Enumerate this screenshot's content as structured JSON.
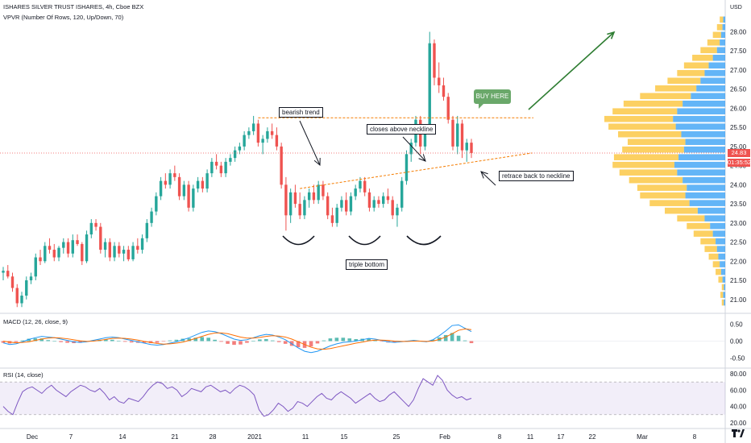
{
  "header": {
    "title": "ISHARES SILVER TRUST ISHARES, 4h, Cboe BZX",
    "indicator": "VPVR (Number Of Rows, 120, Up/Down, 70)",
    "currency": "USD"
  },
  "macd_label": "MACD (12, 26, close, 9)",
  "rsi_label": "RSI (14, close)",
  "price_tags": {
    "last": "24.83",
    "countdown": "01:35:52"
  },
  "annotations": {
    "bearish": "bearish trend",
    "closes": "closes above neckline",
    "retrace": "retrace back to neckline",
    "triple": "triple bottom",
    "buy": "BUY HERE"
  },
  "colors": {
    "up": "#26a69a",
    "down": "#ef5350",
    "vol_up": "#2196f3",
    "vol_down": "#fbc02d",
    "macd": "#2196f3",
    "signal": "#ff6d00",
    "rsi": "#7e57c2",
    "anno": "#f57c00"
  },
  "chart_data": [
    {
      "type": "candlestick",
      "pane": "price",
      "yticks": [
        "28.00",
        "27.50",
        "27.00",
        "26.50",
        "26.00",
        "25.50",
        "25.00",
        "24.50",
        "24.00",
        "23.50",
        "23.00",
        "22.50",
        "22.00",
        "21.50",
        "21.00"
      ],
      "xticks": [
        "Dec",
        "7",
        "14",
        "21",
        "28",
        "2021",
        "11",
        "15",
        "25",
        "Feb",
        "8",
        "11",
        "17",
        "22",
        "Mar",
        "8"
      ],
      "ylim": [
        20.7,
        28.2
      ],
      "candles": [
        [
          21.7,
          21.85,
          21.5,
          21.75
        ],
        [
          21.75,
          21.9,
          21.55,
          21.6
        ],
        [
          21.6,
          21.7,
          21.2,
          21.3
        ],
        [
          21.3,
          21.4,
          20.8,
          20.9
        ],
        [
          20.9,
          21.2,
          20.8,
          21.1
        ],
        [
          21.1,
          21.6,
          21.0,
          21.5
        ],
        [
          21.5,
          21.7,
          21.4,
          21.6
        ],
        [
          21.6,
          22.2,
          21.5,
          22.1
        ],
        [
          22.1,
          22.3,
          21.9,
          22.0
        ],
        [
          22.0,
          22.5,
          21.95,
          22.4
        ],
        [
          22.4,
          22.6,
          22.2,
          22.3
        ],
        [
          22.3,
          22.45,
          22.0,
          22.1
        ],
        [
          22.1,
          22.4,
          22.0,
          22.35
        ],
        [
          22.35,
          22.6,
          22.2,
          22.5
        ],
        [
          22.5,
          22.6,
          22.1,
          22.2
        ],
        [
          22.2,
          22.7,
          22.1,
          22.55
        ],
        [
          22.55,
          22.7,
          22.4,
          22.45
        ],
        [
          22.45,
          22.5,
          21.9,
          22.0
        ],
        [
          22.0,
          22.8,
          21.95,
          22.7
        ],
        [
          22.7,
          23.1,
          22.6,
          23.0
        ],
        [
          23.0,
          23.1,
          22.8,
          22.9
        ],
        [
          22.9,
          23.0,
          22.2,
          22.3
        ],
        [
          22.3,
          22.6,
          22.1,
          22.5
        ],
        [
          22.5,
          22.6,
          22.0,
          22.1
        ],
        [
          22.1,
          22.5,
          22.0,
          22.4
        ],
        [
          22.4,
          22.5,
          22.1,
          22.2
        ],
        [
          22.2,
          22.4,
          22.0,
          22.3
        ],
        [
          22.3,
          22.4,
          22.0,
          22.05
        ],
        [
          22.05,
          22.5,
          22.0,
          22.4
        ],
        [
          22.4,
          22.6,
          22.2,
          22.3
        ],
        [
          22.3,
          22.7,
          22.2,
          22.6
        ],
        [
          22.6,
          23.1,
          22.5,
          23.0
        ],
        [
          23.0,
          23.4,
          22.9,
          23.3
        ],
        [
          23.3,
          23.8,
          23.2,
          23.7
        ],
        [
          23.7,
          24.2,
          23.6,
          24.1
        ],
        [
          24.1,
          24.3,
          23.9,
          24.0
        ],
        [
          24.0,
          24.4,
          23.9,
          24.3
        ],
        [
          24.3,
          24.5,
          24.1,
          24.2
        ],
        [
          24.2,
          24.3,
          23.6,
          23.7
        ],
        [
          23.7,
          24.1,
          23.6,
          24.0
        ],
        [
          24.0,
          24.1,
          23.3,
          23.4
        ],
        [
          23.4,
          24.0,
          23.3,
          23.9
        ],
        [
          23.9,
          24.2,
          23.8,
          24.1
        ],
        [
          24.1,
          24.2,
          23.8,
          23.9
        ],
        [
          23.9,
          24.4,
          23.8,
          24.3
        ],
        [
          24.3,
          24.7,
          24.2,
          24.6
        ],
        [
          24.6,
          24.8,
          24.4,
          24.5
        ],
        [
          24.5,
          24.6,
          24.2,
          24.3
        ],
        [
          24.3,
          24.7,
          24.2,
          24.6
        ],
        [
          24.6,
          24.8,
          24.5,
          24.7
        ],
        [
          24.7,
          25.0,
          24.6,
          24.9
        ],
        [
          24.9,
          25.1,
          24.8,
          25.0
        ],
        [
          25.0,
          25.4,
          24.9,
          25.3
        ],
        [
          25.3,
          25.5,
          25.2,
          25.4
        ],
        [
          25.4,
          25.8,
          25.3,
          25.6
        ],
        [
          25.6,
          25.7,
          25.0,
          25.1
        ],
        [
          25.1,
          25.3,
          24.8,
          25.2
        ],
        [
          25.2,
          25.5,
          25.1,
          25.4
        ],
        [
          25.4,
          25.6,
          25.2,
          25.3
        ],
        [
          25.3,
          25.5,
          24.9,
          25.0
        ],
        [
          25.0,
          25.1,
          23.9,
          24.0
        ],
        [
          24.0,
          24.2,
          22.8,
          23.2
        ],
        [
          23.2,
          23.9,
          23.0,
          23.8
        ],
        [
          23.8,
          24.0,
          23.4,
          23.5
        ],
        [
          23.5,
          23.8,
          23.1,
          23.2
        ],
        [
          23.2,
          23.7,
          23.1,
          23.6
        ],
        [
          23.6,
          23.9,
          23.4,
          23.8
        ],
        [
          23.8,
          24.0,
          23.5,
          23.6
        ],
        [
          23.6,
          24.1,
          23.5,
          24.0
        ],
        [
          24.0,
          24.1,
          23.6,
          23.7
        ],
        [
          23.7,
          23.8,
          23.1,
          23.2
        ],
        [
          23.2,
          23.4,
          22.9,
          23.0
        ],
        [
          23.0,
          23.5,
          22.9,
          23.4
        ],
        [
          23.4,
          23.7,
          23.3,
          23.6
        ],
        [
          23.6,
          23.8,
          23.2,
          23.3
        ],
        [
          23.3,
          23.8,
          23.2,
          23.7
        ],
        [
          23.7,
          24.0,
          23.6,
          23.9
        ],
        [
          23.9,
          24.2,
          23.8,
          24.1
        ],
        [
          24.1,
          24.2,
          23.7,
          23.8
        ],
        [
          23.8,
          23.9,
          23.3,
          23.4
        ],
        [
          23.4,
          23.7,
          23.3,
          23.6
        ],
        [
          23.6,
          23.7,
          23.4,
          23.5
        ],
        [
          23.5,
          23.8,
          23.4,
          23.7
        ],
        [
          23.7,
          23.9,
          23.5,
          23.6
        ],
        [
          23.6,
          23.7,
          23.1,
          23.2
        ],
        [
          23.2,
          23.5,
          22.9,
          23.4
        ],
        [
          23.4,
          24.2,
          23.3,
          24.1
        ],
        [
          24.1,
          24.9,
          24.0,
          24.8
        ],
        [
          24.8,
          25.2,
          24.6,
          25.1
        ],
        [
          25.1,
          25.8,
          25.0,
          25.7
        ],
        [
          25.7,
          25.8,
          24.8,
          25.0
        ],
        [
          25.0,
          25.5,
          24.9,
          25.4
        ],
        [
          25.4,
          28.0,
          25.4,
          27.7
        ],
        [
          27.7,
          27.8,
          26.6,
          26.8
        ],
        [
          26.8,
          27.2,
          26.4,
          26.6
        ],
        [
          26.6,
          26.8,
          26.2,
          26.3
        ],
        [
          26.3,
          26.4,
          25.6,
          25.7
        ],
        [
          25.7,
          25.8,
          24.9,
          25.0
        ],
        [
          25.0,
          25.8,
          24.8,
          25.6
        ],
        [
          25.6,
          25.7,
          24.7,
          24.9
        ],
        [
          24.9,
          25.2,
          24.6,
          25.1
        ],
        [
          25.1,
          25.2,
          24.7,
          24.83
        ]
      ]
    },
    {
      "type": "bar",
      "pane": "volume-profile",
      "ylim": [
        20.7,
        28.2
      ],
      "levels_from": 20.9,
      "level_step": 0.2,
      "up": [
        2,
        3,
        2,
        4,
        6,
        8,
        10,
        12,
        14,
        18,
        22,
        30,
        40,
        52,
        58,
        56,
        62,
        70,
        74,
        68,
        60,
        58,
        64,
        72,
        76,
        70,
        62,
        50,
        42,
        36,
        30,
        24,
        18,
        12,
        8,
        6,
        4,
        3
      ],
      "down": [
        3,
        4,
        3,
        6,
        8,
        10,
        14,
        18,
        22,
        28,
        34,
        40,
        48,
        58,
        66,
        72,
        78,
        84,
        90,
        94,
        90,
        84,
        92,
        98,
        100,
        94,
        86,
        74,
        60,
        48,
        40,
        36,
        30,
        24,
        18,
        12,
        8,
        5
      ]
    },
    {
      "type": "line",
      "pane": "macd",
      "yticks": [
        "0.50",
        "0.00",
        "-0.50"
      ],
      "ylim": [
        -0.75,
        0.75
      ],
      "macd": [
        -0.05,
        -0.1,
        -0.08,
        -0.02,
        0.05,
        0.1,
        0.14,
        0.12,
        0.1,
        0.06,
        0.02,
        -0.02,
        -0.04,
        -0.02,
        0.02,
        0.06,
        0.1,
        0.12,
        0.1,
        0.06,
        0.02,
        -0.02,
        -0.06,
        -0.1,
        -0.12,
        -0.1,
        -0.06,
        -0.02,
        0.04,
        0.1,
        0.18,
        0.26,
        0.3,
        0.28,
        0.22,
        0.14,
        0.06,
        0.02,
        0.04,
        0.1,
        0.16,
        0.2,
        0.18,
        0.12,
        0.04,
        -0.08,
        -0.2,
        -0.3,
        -0.34,
        -0.3,
        -0.22,
        -0.14,
        -0.08,
        -0.04,
        -0.02,
        0.0,
        0.04,
        0.08,
        0.06,
        0.02,
        -0.02,
        -0.04,
        -0.02,
        0.0,
        0.02,
        0.0,
        -0.02,
        0.04,
        0.16,
        0.3,
        0.46,
        0.48,
        0.38,
        0.28
      ],
      "signal": [
        0.0,
        -0.03,
        -0.05,
        -0.04,
        -0.02,
        0.02,
        0.06,
        0.09,
        0.1,
        0.09,
        0.07,
        0.04,
        0.01,
        -0.01,
        0.0,
        0.02,
        0.05,
        0.08,
        0.09,
        0.08,
        0.06,
        0.03,
        -0.01,
        -0.04,
        -0.07,
        -0.09,
        -0.08,
        -0.06,
        -0.03,
        0.02,
        0.08,
        0.14,
        0.2,
        0.24,
        0.24,
        0.22,
        0.17,
        0.12,
        0.09,
        0.09,
        0.11,
        0.14,
        0.16,
        0.15,
        0.12,
        0.06,
        -0.02,
        -0.1,
        -0.18,
        -0.23,
        -0.24,
        -0.22,
        -0.18,
        -0.14,
        -0.1,
        -0.06,
        -0.03,
        0.01,
        0.03,
        0.03,
        0.02,
        0.0,
        -0.01,
        -0.01,
        0.0,
        0.0,
        -0.01,
        0.0,
        0.05,
        0.12,
        0.22,
        0.32,
        0.36,
        0.34
      ]
    },
    {
      "type": "line",
      "pane": "rsi",
      "yticks": [
        "80.00",
        "60.00",
        "40.00",
        "20.00"
      ],
      "ylim": [
        15,
        85
      ],
      "band": [
        30,
        70
      ],
      "values": [
        40,
        34,
        30,
        45,
        58,
        62,
        64,
        60,
        56,
        62,
        66,
        60,
        56,
        52,
        58,
        62,
        66,
        64,
        60,
        58,
        62,
        56,
        48,
        52,
        46,
        44,
        50,
        48,
        46,
        52,
        60,
        66,
        70,
        68,
        62,
        64,
        60,
        52,
        56,
        62,
        60,
        58,
        64,
        66,
        62,
        58,
        60,
        56,
        62,
        66,
        64,
        60,
        54,
        36,
        28,
        30,
        36,
        44,
        40,
        34,
        38,
        46,
        44,
        40,
        46,
        52,
        56,
        50,
        48,
        54,
        58,
        54,
        50,
        44,
        48,
        52,
        56,
        50,
        46,
        48,
        54,
        58,
        52,
        46,
        40,
        48,
        62,
        74,
        70,
        66,
        78,
        72,
        60,
        54,
        50,
        52,
        48,
        50
      ]
    }
  ]
}
